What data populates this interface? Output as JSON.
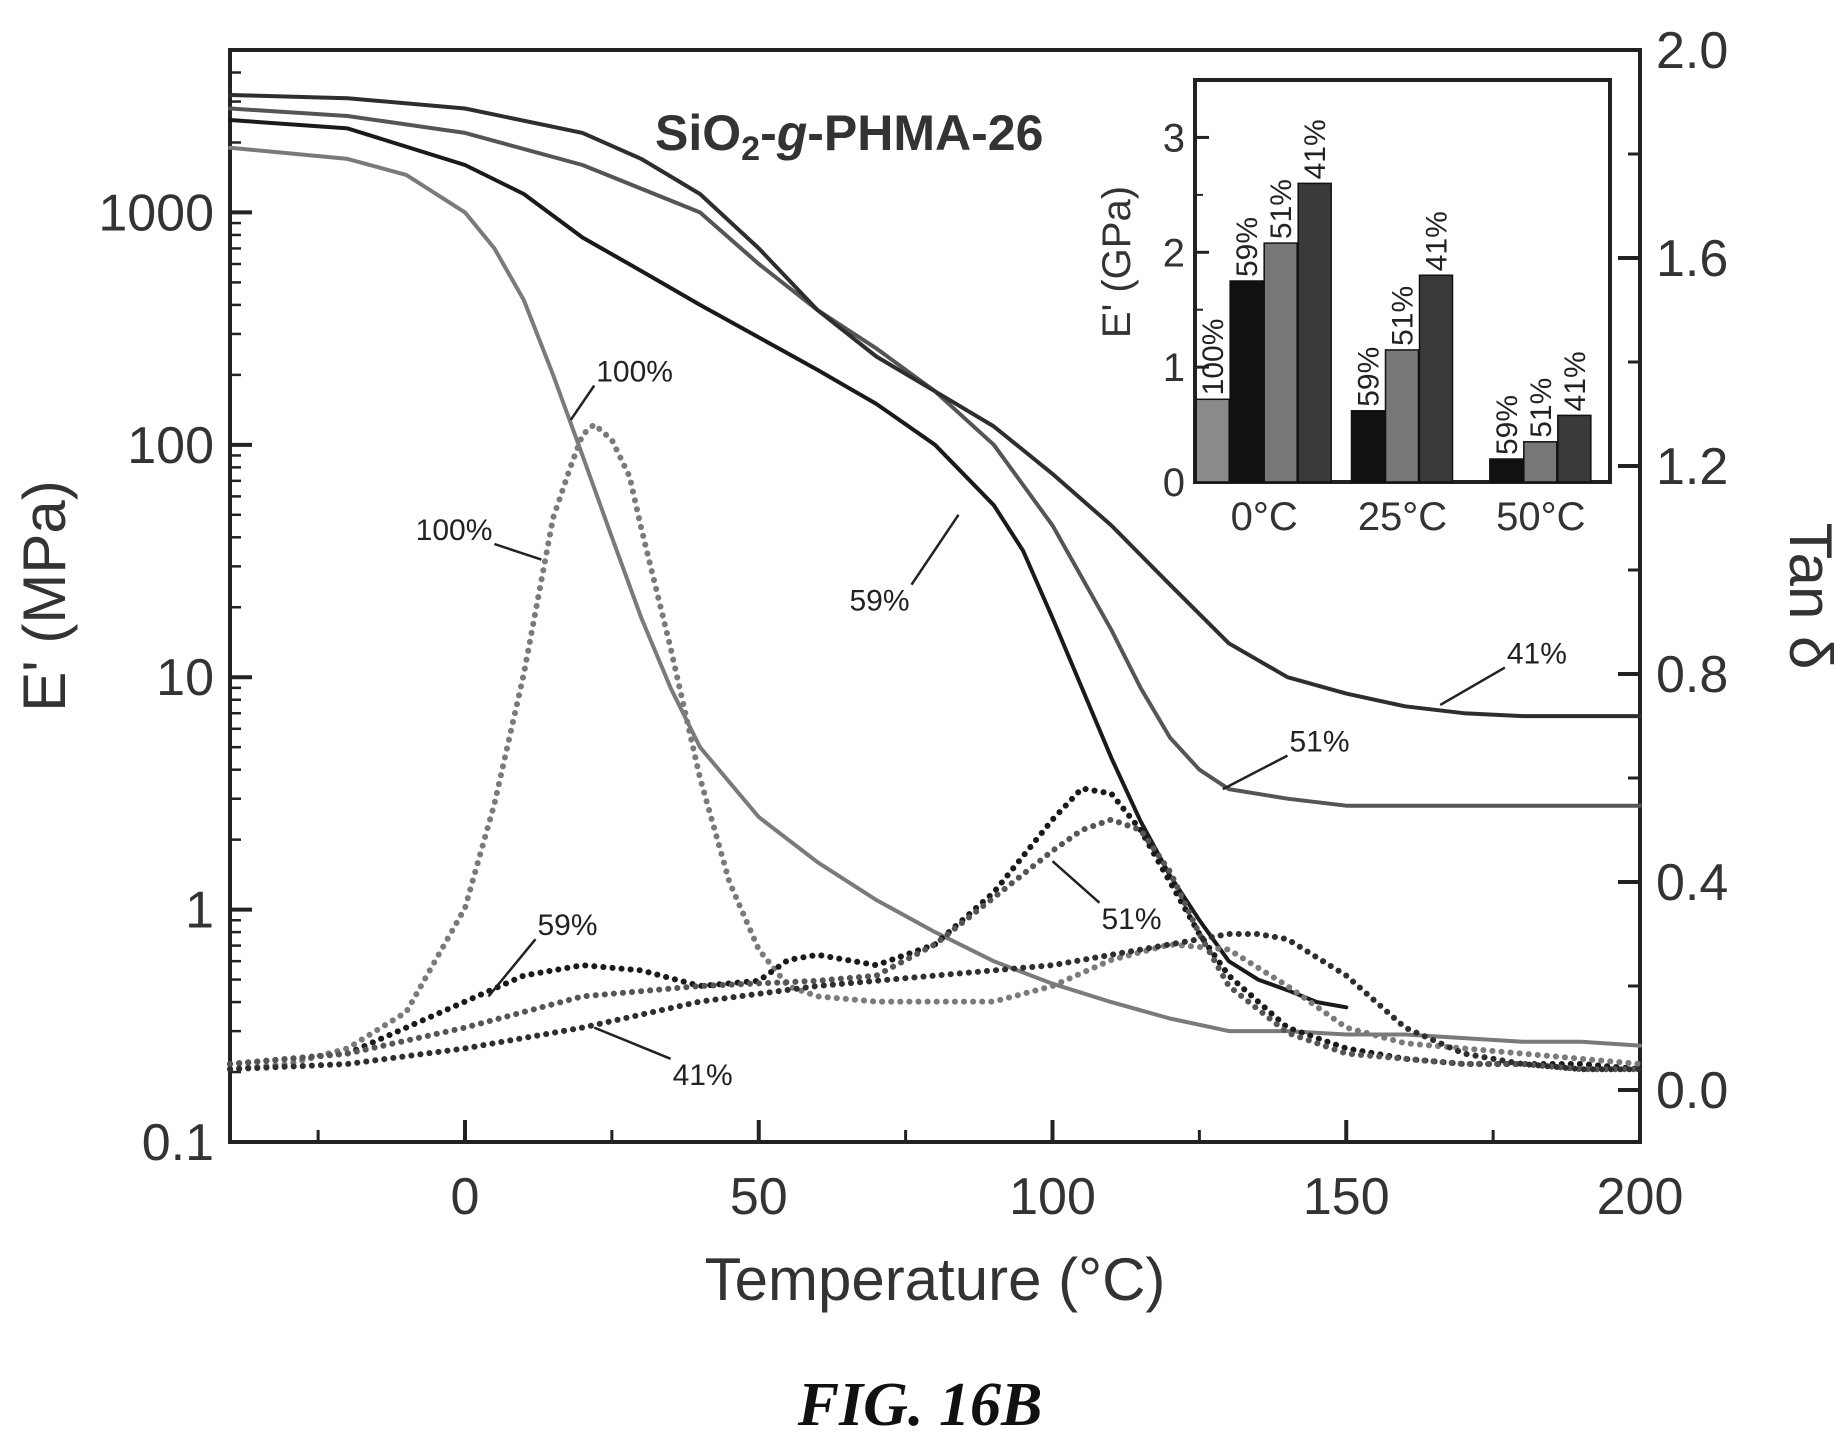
{
  "figure": {
    "caption": "FIG. 16B"
  },
  "chart_data": [
    {
      "type": "line",
      "title": "SiO2-g-PHMA-26",
      "title_parts": {
        "a": "SiO",
        "sub": "2",
        "dash1": "-",
        "italic": "g",
        "rest": "-PHMA-26"
      },
      "xlabel": "Temperature (°C)",
      "ylabel": "E' (MPa)",
      "y2label": "Tan δ",
      "xlim": [
        -40,
        200
      ],
      "ylim": [
        0.1,
        5000
      ],
      "yscale": "log",
      "y2lim": [
        -0.1,
        2.0
      ],
      "xticks": [
        0,
        50,
        100,
        150,
        200
      ],
      "yticks": [
        0.1,
        1,
        10,
        100,
        1000
      ],
      "ytick_labels": [
        "0.1",
        "1",
        "10",
        "100",
        "1000"
      ],
      "y2ticks": [
        0.0,
        0.4,
        0.8,
        1.2,
        1.6,
        2.0
      ],
      "y2tick_labels": [
        "0.0",
        "0.4",
        "0.8",
        "1.2",
        "1.6",
        "2.0"
      ],
      "grid": false,
      "colors": {
        "100%": "#7a7a7a",
        "59%": "#1a1a1a",
        "51%": "#555555",
        "41%": "#2e2e2e"
      },
      "series": [
        {
          "name": "100%",
          "axis": "left",
          "style": "solid",
          "x": [
            -40,
            -20,
            -10,
            0,
            5,
            10,
            15,
            20,
            25,
            30,
            35,
            40,
            50,
            60,
            70,
            80,
            90,
            100,
            110,
            120,
            130,
            140,
            150,
            160,
            170,
            180,
            190,
            200
          ],
          "y": [
            1900,
            1700,
            1450,
            1000,
            700,
            420,
            200,
            90,
            40,
            18,
            9,
            5,
            2.5,
            1.6,
            1.1,
            0.8,
            0.6,
            0.48,
            0.4,
            0.34,
            0.3,
            0.3,
            0.29,
            0.29,
            0.28,
            0.27,
            0.27,
            0.26
          ]
        },
        {
          "name": "59%",
          "axis": "left",
          "style": "solid",
          "x": [
            -40,
            -20,
            0,
            10,
            20,
            30,
            40,
            50,
            60,
            70,
            80,
            90,
            95,
            100,
            105,
            110,
            115,
            120,
            125,
            130,
            135,
            140,
            145,
            150
          ],
          "y": [
            2500,
            2300,
            1600,
            1200,
            780,
            560,
            400,
            290,
            210,
            150,
            100,
            55,
            35,
            18,
            9,
            4.5,
            2.4,
            1.4,
            0.9,
            0.6,
            0.5,
            0.45,
            0.4,
            0.38
          ]
        },
        {
          "name": "51%",
          "axis": "left",
          "style": "solid",
          "x": [
            -40,
            -20,
            0,
            20,
            40,
            50,
            60,
            70,
            80,
            90,
            100,
            110,
            115,
            120,
            125,
            130,
            140,
            150,
            160,
            170,
            180,
            190,
            200
          ],
          "y": [
            2800,
            2600,
            2200,
            1600,
            1000,
            600,
            380,
            260,
            170,
            100,
            45,
            16,
            9,
            5.5,
            4,
            3.3,
            3,
            2.8,
            2.8,
            2.8,
            2.8,
            2.8,
            2.8
          ]
        },
        {
          "name": "41%",
          "axis": "left",
          "style": "solid",
          "x": [
            -40,
            -20,
            0,
            20,
            30,
            40,
            50,
            60,
            70,
            80,
            90,
            100,
            110,
            120,
            130,
            140,
            150,
            160,
            170,
            180,
            190,
            200
          ],
          "y": [
            3200,
            3100,
            2800,
            2200,
            1700,
            1200,
            700,
            380,
            240,
            170,
            120,
            75,
            45,
            25,
            14,
            10,
            8.5,
            7.5,
            7,
            6.8,
            6.8,
            6.8
          ]
        },
        {
          "name": "100%",
          "axis": "right",
          "style": "dotted",
          "x": [
            -40,
            -30,
            -20,
            -10,
            0,
            5,
            10,
            15,
            18,
            20,
            22,
            25,
            28,
            30,
            35,
            40,
            45,
            50,
            55,
            60,
            70,
            80,
            90,
            100,
            110,
            120,
            130,
            140,
            150,
            160,
            170,
            180,
            190,
            200
          ],
          "y": [
            0.04,
            0.05,
            0.08,
            0.15,
            0.35,
            0.55,
            0.8,
            1.1,
            1.2,
            1.26,
            1.28,
            1.25,
            1.18,
            1.08,
            0.85,
            0.6,
            0.4,
            0.27,
            0.2,
            0.18,
            0.17,
            0.17,
            0.17,
            0.2,
            0.25,
            0.28,
            0.27,
            0.2,
            0.12,
            0.09,
            0.08,
            0.07,
            0.06,
            0.05
          ]
        },
        {
          "name": "59%",
          "axis": "right",
          "style": "dotted",
          "x": [
            -40,
            -20,
            0,
            10,
            20,
            30,
            40,
            50,
            55,
            60,
            70,
            80,
            90,
            100,
            105,
            110,
            115,
            120,
            125,
            130,
            140,
            150,
            160,
            170,
            180,
            190,
            200
          ],
          "y": [
            0.05,
            0.07,
            0.17,
            0.22,
            0.24,
            0.23,
            0.2,
            0.21,
            0.25,
            0.26,
            0.24,
            0.28,
            0.38,
            0.52,
            0.58,
            0.57,
            0.5,
            0.4,
            0.3,
            0.22,
            0.12,
            0.08,
            0.06,
            0.05,
            0.05,
            0.05,
            0.04
          ]
        },
        {
          "name": "51%",
          "axis": "right",
          "style": "dotted",
          "x": [
            -40,
            -20,
            0,
            20,
            40,
            60,
            70,
            80,
            90,
            100,
            105,
            110,
            115,
            120,
            125,
            130,
            140,
            150,
            160,
            170,
            180,
            190,
            200
          ],
          "y": [
            0.05,
            0.07,
            0.12,
            0.18,
            0.2,
            0.21,
            0.22,
            0.28,
            0.37,
            0.46,
            0.5,
            0.52,
            0.5,
            0.42,
            0.3,
            0.2,
            0.11,
            0.07,
            0.06,
            0.05,
            0.05,
            0.04,
            0.04
          ]
        },
        {
          "name": "41%",
          "axis": "right",
          "style": "dotted",
          "x": [
            -40,
            -20,
            0,
            20,
            40,
            60,
            80,
            100,
            110,
            120,
            130,
            135,
            140,
            150,
            160,
            170,
            180,
            190,
            200
          ],
          "y": [
            0.04,
            0.05,
            0.08,
            0.12,
            0.17,
            0.2,
            0.22,
            0.24,
            0.26,
            0.28,
            0.3,
            0.3,
            0.29,
            0.22,
            0.12,
            0.07,
            0.05,
            0.04,
            0.04
          ]
        }
      ],
      "annotations": [
        {
          "text": "100%",
          "x": 18,
          "y": 128,
          "tx": 22,
          "ty": 180
        },
        {
          "text": "100%",
          "x": 13,
          "y": 1.02,
          "axis": "right",
          "tx": 5,
          "ty": 1.05
        },
        {
          "text": "59%",
          "x": 84,
          "y": 50,
          "tx": 76,
          "ty": 25
        },
        {
          "text": "41%",
          "x": 166,
          "y": 7.6,
          "tx": 177,
          "ty": 11
        },
        {
          "text": "51%",
          "x": 129,
          "y": 3.3,
          "tx": 140,
          "ty": 4.6
        },
        {
          "text": "51%",
          "x": 100,
          "y": 0.44,
          "axis": "right",
          "tx": 108,
          "ty": 0.36
        },
        {
          "text": "59%",
          "x": 4,
          "y": 0.18,
          "axis": "right",
          "tx": 12,
          "ty": 0.29
        },
        {
          "text": "41%",
          "x": 22,
          "y": 0.12,
          "axis": "right",
          "tx": 35,
          "ty": 0.06
        }
      ]
    },
    {
      "type": "bar",
      "ylabel": "E' (GPa)",
      "ylim": [
        0,
        3.5
      ],
      "yticks": [
        0,
        1,
        2,
        3
      ],
      "ytick_labels": [
        "0",
        "1",
        "2",
        "3"
      ],
      "categories": [
        "0°C",
        "25°C",
        "50°C"
      ],
      "series": [
        {
          "name": "100%",
          "values": [
            0.72,
            null,
            null
          ]
        },
        {
          "name": "59%",
          "values": [
            1.75,
            0.62,
            0.2
          ]
        },
        {
          "name": "51%",
          "values": [
            2.08,
            1.15,
            0.35
          ]
        },
        {
          "name": "41%",
          "values": [
            2.6,
            1.8,
            0.58
          ]
        }
      ],
      "colors": {
        "100%": "#8a8a8a",
        "59%": "#111111",
        "51%": "#777777",
        "41%": "#3a3a3a"
      }
    }
  ]
}
